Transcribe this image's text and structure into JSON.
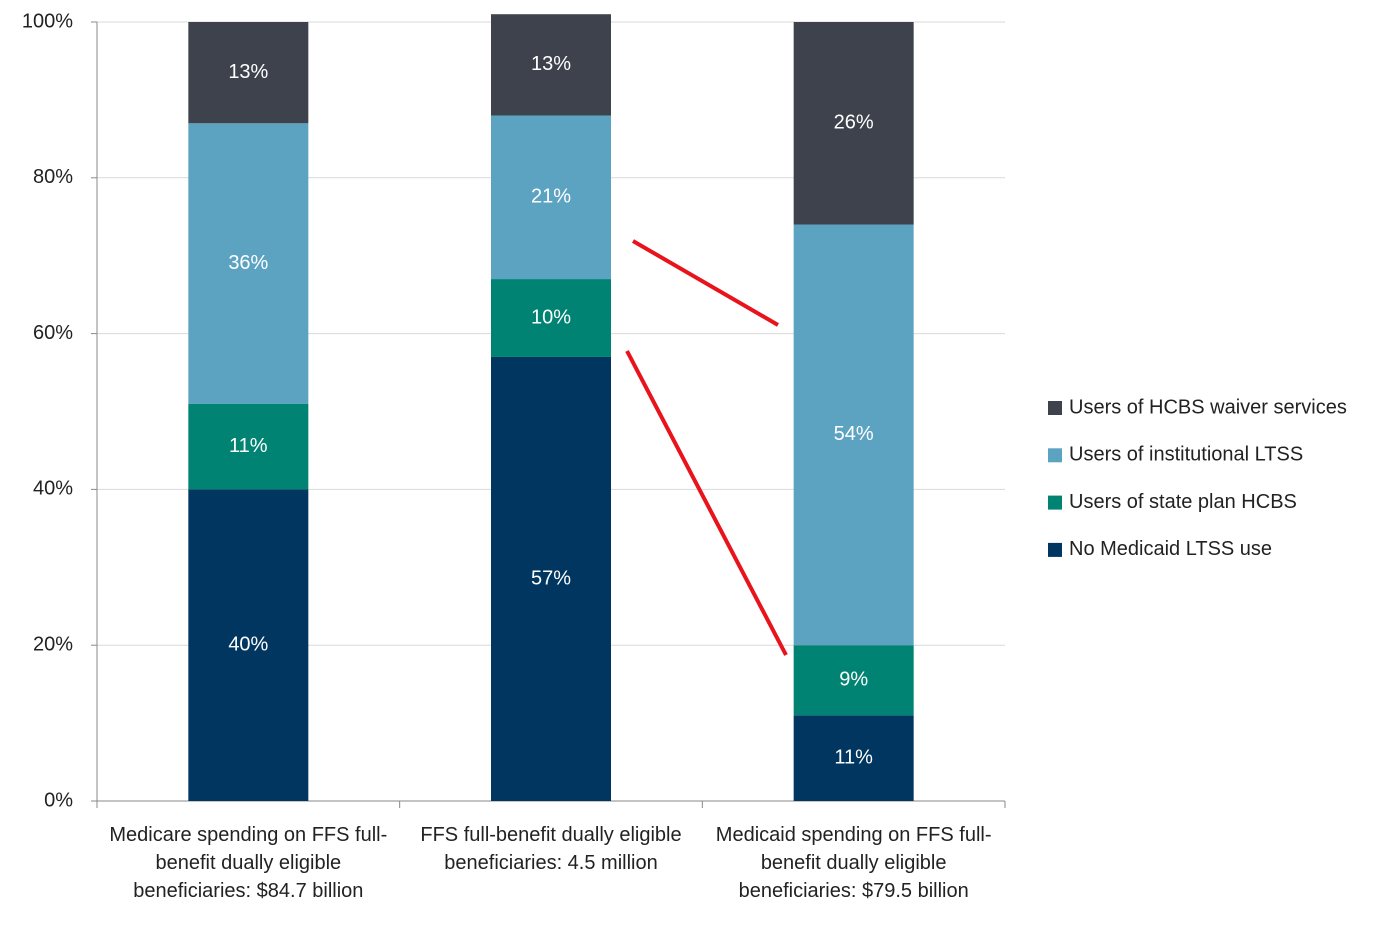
{
  "chart_data": {
    "type": "stacked_bar",
    "categories": [
      "Medicare spending on FFS full-benefit dually eligible beneficiaries: $84.7 billion",
      "FFS full-benefit dually eligible beneficiaries: 4.5 million",
      "Medicaid spending on FFS full-benefit dually eligible beneficiaries: $79.5 billion"
    ],
    "series": [
      {
        "name": "No Medicaid LTSS use",
        "color": "#003660",
        "values": [
          40,
          57,
          11
        ],
        "value_labels": [
          "40%",
          "57%",
          "11%"
        ]
      },
      {
        "name": "Users of state plan HCBS",
        "color": "#008373",
        "values": [
          11,
          10,
          9
        ],
        "value_labels": [
          "11%",
          "10%",
          "9%"
        ]
      },
      {
        "name": "Users of institutional LTSS",
        "color": "#5ca3c2",
        "values": [
          36,
          21,
          54
        ],
        "value_labels": [
          "36%",
          "21%",
          "54%"
        ]
      },
      {
        "name": "Users of HCBS waiver services",
        "color": "#3e424d",
        "values": [
          13,
          13,
          26
        ],
        "value_labels": [
          "13%",
          "13%",
          "26%"
        ]
      }
    ],
    "ylim": [
      0,
      100
    ],
    "yticks": [
      {
        "value": 0,
        "label": "0%"
      },
      {
        "value": 20,
        "label": "20%"
      },
      {
        "value": 40,
        "label": "40%"
      },
      {
        "value": 60,
        "label": "60%"
      },
      {
        "value": 80,
        "label": "80%"
      },
      {
        "value": 100,
        "label": "100%"
      }
    ],
    "grid": true,
    "legend": "right"
  }
}
